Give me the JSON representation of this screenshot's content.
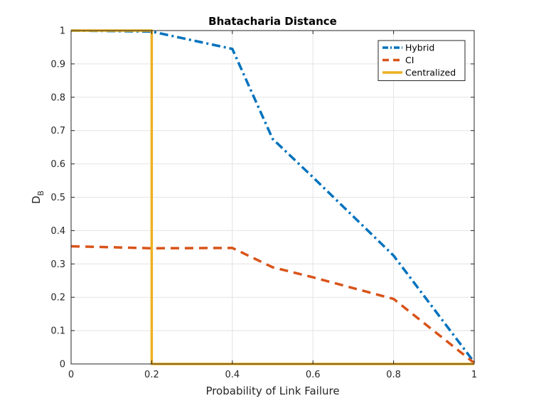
{
  "chart_data": {
    "type": "line",
    "title": "Bhatacharia Distance",
    "xlabel": "Probability of Link Failure",
    "ylabel_main": "D",
    "ylabel_sub": "B",
    "xlim": [
      0,
      1
    ],
    "ylim": [
      0,
      1
    ],
    "xticks": [
      0,
      0.2,
      0.4,
      0.6,
      0.8,
      1
    ],
    "xtick_labels": [
      "0",
      "0.2",
      "0.4",
      "0.6",
      "0.8",
      "1"
    ],
    "yticks": [
      0,
      0.1,
      0.2,
      0.3,
      0.4,
      0.5,
      0.6,
      0.7,
      0.8,
      0.9,
      1
    ],
    "ytick_labels": [
      "0",
      "0.1",
      "0.2",
      "0.3",
      "0.4",
      "0.5",
      "0.6",
      "0.7",
      "0.8",
      "0.9",
      "1"
    ],
    "grid": true,
    "legend_position": "top-right",
    "series": [
      {
        "name": "Hybrid",
        "color": "#0072BD",
        "style": "dash-dot",
        "x": [
          0,
          0.2,
          0.4,
          0.5,
          0.6,
          0.8,
          1
        ],
        "y": [
          1.0,
          0.997,
          0.945,
          0.675,
          0.56,
          0.325,
          0.005
        ]
      },
      {
        "name": "CI",
        "color": "#D95319",
        "style": "dashed",
        "x": [
          0,
          0.2,
          0.4,
          0.5,
          0.6,
          0.8,
          1
        ],
        "y": [
          0.353,
          0.347,
          0.348,
          0.29,
          0.26,
          0.195,
          0.003
        ]
      },
      {
        "name": "Centralized",
        "color": "#EDB120",
        "style": "solid",
        "x": [
          0,
          0.2,
          0.2,
          1
        ],
        "y": [
          1.0,
          1.0,
          0.0,
          0.0
        ]
      }
    ]
  }
}
